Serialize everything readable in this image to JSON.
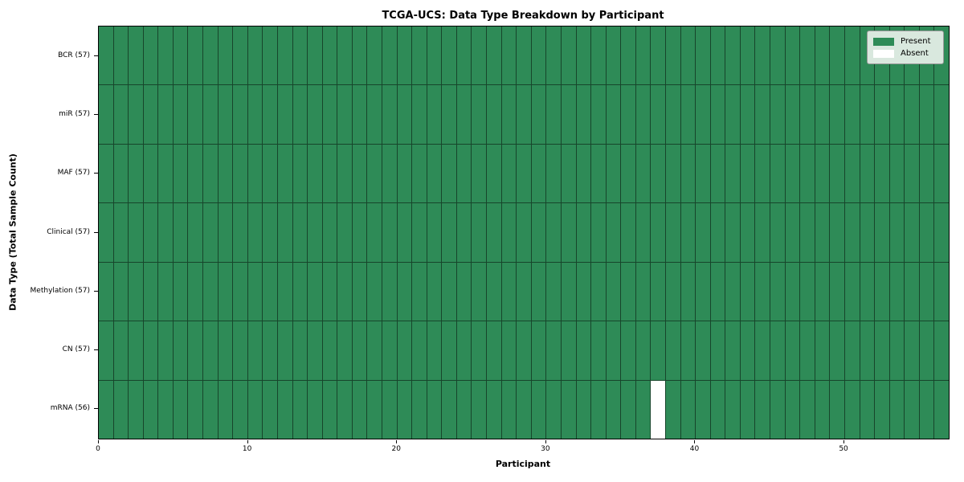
{
  "figure": {
    "title": "TCGA-UCS: Data Type Breakdown by Participant",
    "xlabel": "Participant",
    "ylabel": "Data Type (Total Sample Count)"
  },
  "legend": {
    "items": [
      {
        "label": "Present",
        "color": "#2e8b57"
      },
      {
        "label": "Absent",
        "color": "#ffffff"
      }
    ]
  },
  "chart_data": {
    "type": "heatmap",
    "title": "TCGA-UCS: Data Type Breakdown by Participant",
    "xlabel": "Participant",
    "ylabel": "Data Type (Total Sample Count)",
    "n_participants": 57,
    "x_range": [
      0,
      57
    ],
    "x_ticks": [
      0,
      10,
      20,
      30,
      40,
      50
    ],
    "grid": true,
    "legend_position": "upper right",
    "colors": {
      "present": "#2e8b57",
      "absent": "#ffffff",
      "cell_edge": "#17452b",
      "spine": "#000000"
    },
    "rows": [
      {
        "label": "BCR (57)",
        "data_type": "BCR",
        "present_count": 57,
        "absent_participants": []
      },
      {
        "label": "miR (57)",
        "data_type": "miR",
        "present_count": 57,
        "absent_participants": []
      },
      {
        "label": "MAF (57)",
        "data_type": "MAF",
        "present_count": 57,
        "absent_participants": []
      },
      {
        "label": "Clinical (57)",
        "data_type": "Clinical",
        "present_count": 57,
        "absent_participants": []
      },
      {
        "label": "Methylation (57)",
        "data_type": "Methylation",
        "present_count": 57,
        "absent_participants": []
      },
      {
        "label": "CN (57)",
        "data_type": "CN",
        "present_count": 57,
        "absent_participants": []
      },
      {
        "label": "mRNA (56)",
        "data_type": "mRNA",
        "present_count": 56,
        "absent_participants": [
          37
        ]
      }
    ]
  }
}
